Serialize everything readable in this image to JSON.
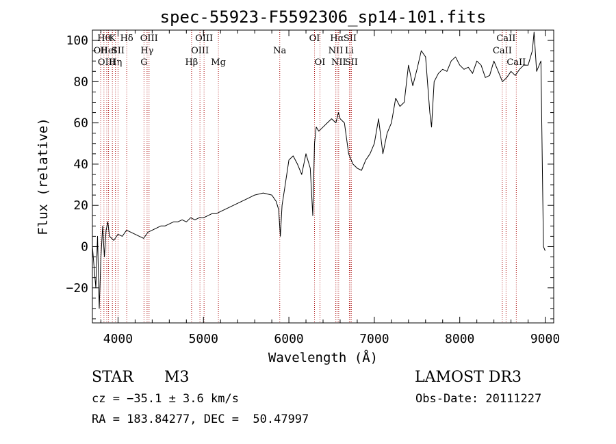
{
  "chart_data": {
    "type": "line",
    "title": "spec-55923-F5592306_sp14-101.fits",
    "xlabel": "Wavelength (Å)",
    "ylabel": "Flux (relative)",
    "xlim": [
      3700,
      9100
    ],
    "ylim": [
      -37,
      105
    ],
    "x_ticks": [
      4000,
      5000,
      6000,
      7000,
      8000,
      9000
    ],
    "y_ticks": [
      -20,
      0,
      20,
      40,
      60,
      80,
      100
    ],
    "x_tick_labels": [
      "4000",
      "5000",
      "6000",
      "7000",
      "8000",
      "9000"
    ],
    "y_tick_labels": [
      "−20",
      "0",
      "20",
      "40",
      "60",
      "80",
      "100"
    ],
    "grid": false,
    "spectrum": {
      "x": [
        3700,
        3720,
        3740,
        3760,
        3780,
        3800,
        3820,
        3840,
        3860,
        3880,
        3900,
        3950,
        4000,
        4050,
        4100,
        4150,
        4200,
        4250,
        4300,
        4350,
        4400,
        4450,
        4500,
        4550,
        4600,
        4650,
        4700,
        4750,
        4800,
        4850,
        4900,
        4950,
        5000,
        5050,
        5100,
        5150,
        5200,
        5300,
        5400,
        5500,
        5600,
        5700,
        5800,
        5850,
        5880,
        5900,
        5920,
        5950,
        6000,
        6050,
        6100,
        6150,
        6200,
        6250,
        6280,
        6300,
        6320,
        6350,
        6400,
        6450,
        6500,
        6550,
        6580,
        6600,
        6650,
        6700,
        6750,
        6800,
        6850,
        6900,
        6950,
        7000,
        7050,
        7100,
        7150,
        7200,
        7250,
        7300,
        7350,
        7400,
        7450,
        7500,
        7550,
        7600,
        7650,
        7670,
        7700,
        7750,
        7800,
        7850,
        7900,
        7950,
        8000,
        8050,
        8100,
        8150,
        8200,
        8250,
        8300,
        8350,
        8400,
        8450,
        8500,
        8550,
        8600,
        8650,
        8700,
        8750,
        8800,
        8850,
        8870,
        8900,
        8950,
        8980,
        9000
      ],
      "y": [
        0,
        -10,
        -20,
        5,
        -30,
        -5,
        10,
        -5,
        8,
        12,
        5,
        3,
        6,
        5,
        8,
        7,
        6,
        5,
        4,
        7,
        8,
        9,
        10,
        10,
        11,
        12,
        12,
        13,
        12,
        14,
        13,
        14,
        14,
        15,
        16,
        16,
        17,
        19,
        21,
        23,
        25,
        26,
        25,
        22,
        18,
        5,
        20,
        28,
        42,
        44,
        40,
        35,
        45,
        38,
        15,
        50,
        58,
        56,
        58,
        60,
        62,
        60,
        65,
        62,
        60,
        45,
        40,
        38,
        37,
        42,
        45,
        50,
        62,
        45,
        55,
        60,
        72,
        68,
        70,
        88,
        78,
        86,
        95,
        92,
        65,
        58,
        80,
        84,
        86,
        85,
        90,
        92,
        88,
        86,
        87,
        84,
        90,
        88,
        82,
        83,
        90,
        85,
        80,
        82,
        85,
        83,
        86,
        88,
        88,
        95,
        104,
        85,
        90,
        0,
        -2
      ],
      "color": "#000000"
    },
    "lines": [
      {
        "x": 3797,
        "tier": 1,
        "label": "OII"
      },
      {
        "x": 3835,
        "tier": 0,
        "label": "Hθ"
      },
      {
        "x": 3868,
        "tier": 2,
        "label": "OIII"
      },
      {
        "x": 3889,
        "tier": 1,
        "label": "HeI"
      },
      {
        "x": 3934,
        "tier": 0,
        "label": "K"
      },
      {
        "x": 3970,
        "tier": 2,
        "label": "Hη"
      },
      {
        "x": 4000,
        "tier": 1,
        "label": "SII"
      },
      {
        "x": 4102,
        "tier": 0,
        "label": "Hδ"
      },
      {
        "x": 4304,
        "tier": 2,
        "label": "G"
      },
      {
        "x": 4340,
        "tier": 1,
        "label": "Hγ"
      },
      {
        "x": 4363,
        "tier": 0,
        "label": "OIII"
      },
      {
        "x": 4861,
        "tier": 2,
        "label": "Hβ"
      },
      {
        "x": 4959,
        "tier": 1,
        "label": "OIII"
      },
      {
        "x": 5007,
        "tier": 0,
        "label": "OIII"
      },
      {
        "x": 5175,
        "tier": 2,
        "label": "Mg"
      },
      {
        "x": 5893,
        "tier": 1,
        "label": "Na"
      },
      {
        "x": 6300,
        "tier": 0,
        "label": "OI"
      },
      {
        "x": 6364,
        "tier": 2,
        "label": "OI"
      },
      {
        "x": 6548,
        "tier": 1,
        "label": "NII"
      },
      {
        "x": 6563,
        "tier": 0,
        "label": "Hα"
      },
      {
        "x": 6583,
        "tier": 2,
        "label": "NII"
      },
      {
        "x": 6708,
        "tier": 1,
        "label": "Li"
      },
      {
        "x": 6716,
        "tier": 0,
        "label": "SII"
      },
      {
        "x": 6731,
        "tier": 2,
        "label": "SII"
      },
      {
        "x": 8498,
        "tier": 1,
        "label": "CaII"
      },
      {
        "x": 8542,
        "tier": 0,
        "label": "CaII"
      },
      {
        "x": 8662,
        "tier": 2,
        "label": "CaII"
      }
    ],
    "line_color": "#b01818"
  },
  "info": {
    "class_label": "STAR",
    "subclass": "M3",
    "survey": "LAMOST DR3",
    "cz": "cz = −35.1 ± 3.6 km/s",
    "obs_date": "Obs-Date: 20111227",
    "coords": "RA = 183.84277, DEC =  50.47997"
  }
}
